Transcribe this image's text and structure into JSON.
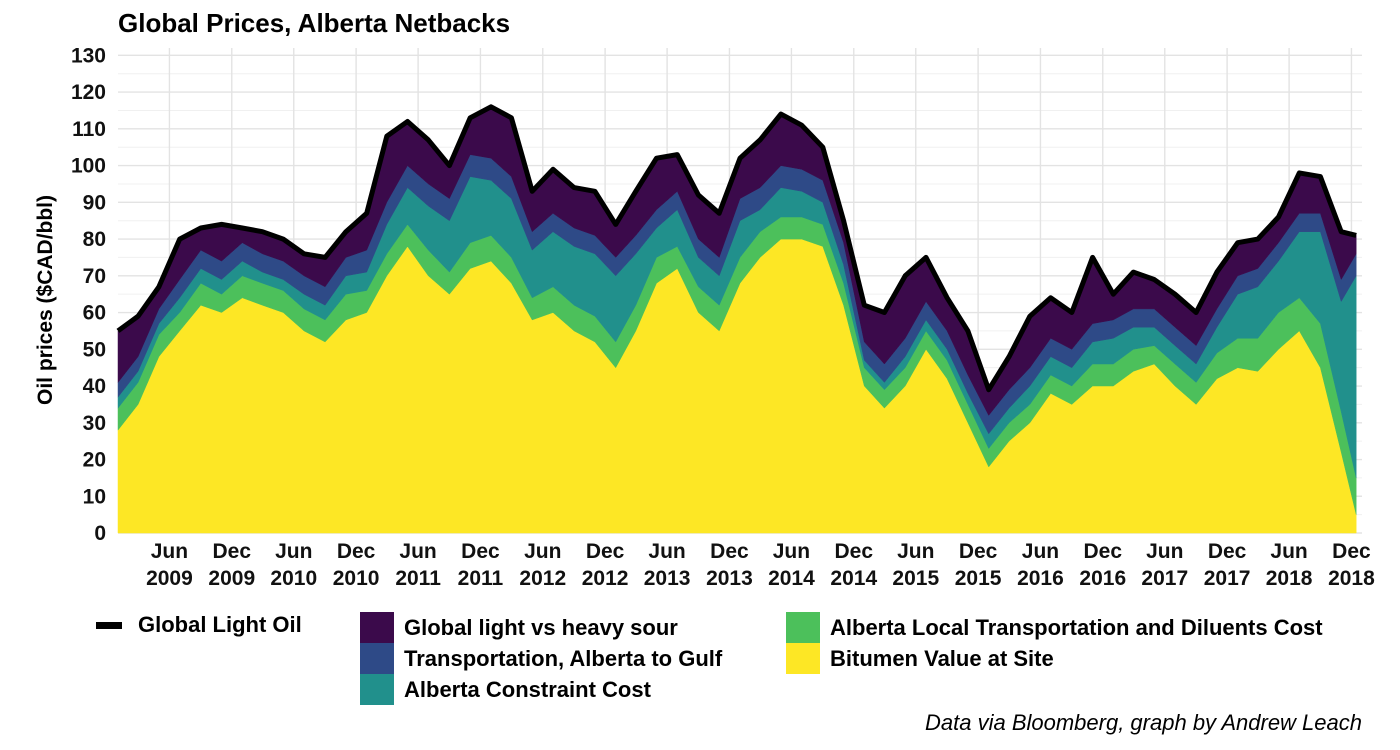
{
  "chart_data": {
    "type": "area",
    "title": "Global Prices, Alberta Netbacks",
    "xlabel": "",
    "ylabel": "Oil prices ($CAD/bbl)",
    "ylim": [
      0,
      132
    ],
    "yticks": [
      0,
      10,
      20,
      30,
      40,
      50,
      60,
      70,
      80,
      90,
      100,
      110,
      120,
      130
    ],
    "xlim": [
      "2009-01-01",
      "2019-01-01"
    ],
    "xticks": [
      {
        "date": "2009-06-01",
        "month": "Jun",
        "year": "2009"
      },
      {
        "date": "2009-12-01",
        "month": "Dec",
        "year": "2009"
      },
      {
        "date": "2010-06-01",
        "month": "Jun",
        "year": "2010"
      },
      {
        "date": "2010-12-01",
        "month": "Dec",
        "year": "2010"
      },
      {
        "date": "2011-06-01",
        "month": "Jun",
        "year": "2011"
      },
      {
        "date": "2011-12-01",
        "month": "Dec",
        "year": "2011"
      },
      {
        "date": "2012-06-01",
        "month": "Jun",
        "year": "2012"
      },
      {
        "date": "2012-12-01",
        "month": "Dec",
        "year": "2012"
      },
      {
        "date": "2013-06-01",
        "month": "Jun",
        "year": "2013"
      },
      {
        "date": "2013-12-01",
        "month": "Dec",
        "year": "2013"
      },
      {
        "date": "2014-06-01",
        "month": "Jun",
        "year": "2014"
      },
      {
        "date": "2014-12-01",
        "month": "Dec",
        "year": "2014"
      },
      {
        "date": "2015-06-01",
        "month": "Jun",
        "year": "2015"
      },
      {
        "date": "2015-12-01",
        "month": "Dec",
        "year": "2015"
      },
      {
        "date": "2016-06-01",
        "month": "Jun",
        "year": "2016"
      },
      {
        "date": "2016-12-01",
        "month": "Dec",
        "year": "2016"
      },
      {
        "date": "2017-06-01",
        "month": "Jun",
        "year": "2017"
      },
      {
        "date": "2017-12-01",
        "month": "Dec",
        "year": "2017"
      },
      {
        "date": "2018-06-01",
        "month": "Jun",
        "year": "2018"
      },
      {
        "date": "2018-12-01",
        "month": "Dec",
        "year": "2018"
      }
    ],
    "grid": true,
    "legend_position": "bottom",
    "x": [
      "2009-01-01",
      "2009-03-01",
      "2009-05-01",
      "2009-07-01",
      "2009-09-01",
      "2009-11-01",
      "2010-01-01",
      "2010-03-01",
      "2010-05-01",
      "2010-07-01",
      "2010-09-01",
      "2010-11-01",
      "2011-01-01",
      "2011-03-01",
      "2011-05-01",
      "2011-07-01",
      "2011-09-01",
      "2011-11-01",
      "2012-01-01",
      "2012-03-01",
      "2012-05-01",
      "2012-07-01",
      "2012-09-01",
      "2012-11-01",
      "2013-01-01",
      "2013-03-01",
      "2013-05-01",
      "2013-07-01",
      "2013-09-01",
      "2013-11-01",
      "2014-01-01",
      "2014-03-01",
      "2014-05-01",
      "2014-07-01",
      "2014-09-01",
      "2014-11-01",
      "2015-01-01",
      "2015-03-01",
      "2015-05-01",
      "2015-07-01",
      "2015-09-01",
      "2015-11-01",
      "2016-01-01",
      "2016-03-01",
      "2016-05-01",
      "2016-07-01",
      "2016-09-01",
      "2016-11-01",
      "2017-01-01",
      "2017-03-01",
      "2017-05-01",
      "2017-07-01",
      "2017-09-01",
      "2017-11-01",
      "2018-01-01",
      "2018-03-01",
      "2018-05-01",
      "2018-07-01",
      "2018-09-01",
      "2018-11-01",
      "2018-12-15"
    ],
    "series": [
      {
        "name": "Bitumen Value at Site",
        "color": "#fde725",
        "values": [
          28,
          35,
          48,
          55,
          62,
          60,
          64,
          62,
          60,
          55,
          52,
          58,
          60,
          70,
          78,
          70,
          65,
          72,
          74,
          68,
          58,
          60,
          55,
          52,
          45,
          55,
          68,
          72,
          60,
          55,
          68,
          75,
          80,
          80,
          78,
          62,
          40,
          34,
          40,
          50,
          42,
          30,
          18,
          25,
          30,
          38,
          35,
          40,
          40,
          44,
          46,
          40,
          35,
          42,
          45,
          44,
          50,
          55,
          45,
          22,
          5
        ]
      },
      {
        "name": "Alberta Local Transportation and Diluents Cost",
        "color": "#4cc05b",
        "values": [
          6,
          6,
          6,
          5,
          6,
          5,
          6,
          6,
          6,
          6,
          6,
          7,
          6,
          6,
          6,
          7,
          6,
          7,
          7,
          7,
          6,
          7,
          7,
          7,
          7,
          7,
          7,
          6,
          7,
          7,
          7,
          7,
          6,
          6,
          6,
          6,
          5,
          5,
          5,
          5,
          5,
          5,
          5,
          5,
          5,
          5,
          5,
          6,
          6,
          6,
          5,
          6,
          6,
          7,
          8,
          9,
          10,
          9,
          12,
          11,
          10
        ]
      },
      {
        "name": "Alberta Constraint Cost",
        "color": "#21908c",
        "values": [
          3,
          3,
          3,
          4,
          4,
          4,
          4,
          3,
          3,
          4,
          4,
          5,
          5,
          8,
          10,
          12,
          14,
          18,
          15,
          16,
          13,
          15,
          16,
          17,
          18,
          14,
          8,
          10,
          8,
          8,
          10,
          6,
          8,
          7,
          6,
          5,
          2,
          2,
          3,
          3,
          3,
          3,
          4,
          4,
          5,
          5,
          5,
          6,
          7,
          6,
          5,
          5,
          5,
          7,
          12,
          14,
          14,
          18,
          25,
          30,
          55
        ]
      },
      {
        "name": "Transportation, Alberta to Gulf",
        "color": "#2e4a87",
        "values": [
          4,
          4,
          4,
          5,
          5,
          5,
          5,
          5,
          5,
          5,
          5,
          5,
          6,
          6,
          6,
          6,
          6,
          6,
          6,
          6,
          5,
          5,
          5,
          5,
          5,
          5,
          5,
          5,
          5,
          5,
          6,
          6,
          6,
          6,
          6,
          6,
          5,
          5,
          5,
          5,
          5,
          5,
          5,
          5,
          5,
          5,
          5,
          5,
          5,
          5,
          5,
          5,
          5,
          5,
          5,
          5,
          5,
          5,
          5,
          6,
          6
        ]
      },
      {
        "name": "Global light vs heavy sour",
        "color": "#3b0a4b",
        "values": [
          14,
          11,
          6,
          11,
          6,
          10,
          4,
          6,
          6,
          6,
          8,
          7,
          10,
          18,
          12,
          12,
          9,
          10,
          14,
          16,
          11,
          12,
          11,
          12,
          9,
          12,
          14,
          10,
          12,
          12,
          11,
          13,
          14,
          12,
          9,
          6,
          10,
          14,
          17,
          12,
          9,
          12,
          7,
          9,
          14,
          11,
          10,
          18,
          7,
          10,
          8,
          9,
          9,
          10,
          9,
          8,
          7,
          11,
          10,
          13,
          5
        ]
      },
      {
        "name": "Global Light Oil",
        "color": "#000000",
        "line": true,
        "values": [
          55,
          59,
          67,
          80,
          83,
          84,
          83,
          82,
          80,
          76,
          75,
          82,
          87,
          108,
          112,
          107,
          100,
          113,
          116,
          113,
          93,
          99,
          94,
          93,
          84,
          93,
          102,
          103,
          92,
          87,
          102,
          107,
          114,
          111,
          105,
          85,
          62,
          60,
          70,
          75,
          64,
          55,
          39,
          48,
          59,
          64,
          60,
          75,
          65,
          71,
          69,
          65,
          60,
          71,
          79,
          80,
          86,
          98,
          97,
          82,
          81
        ]
      }
    ]
  },
  "legend": {
    "items": [
      {
        "label": "Global Light Oil",
        "color": "#000000",
        "kind": "line"
      },
      {
        "label": "Global light vs heavy sour",
        "color": "#3b0a4b",
        "kind": "fill"
      },
      {
        "label": "Transportation, Alberta to Gulf",
        "color": "#2e4a87",
        "kind": "fill"
      },
      {
        "label": "Alberta Constraint Cost",
        "color": "#21908c",
        "kind": "fill"
      },
      {
        "label": "Alberta Local Transportation and Diluents Cost",
        "color": "#4cc05b",
        "kind": "fill"
      },
      {
        "label": "Bitumen Value at Site",
        "color": "#fde725",
        "kind": "fill"
      }
    ]
  },
  "caption": "Data via Bloomberg, graph by Andrew Leach"
}
